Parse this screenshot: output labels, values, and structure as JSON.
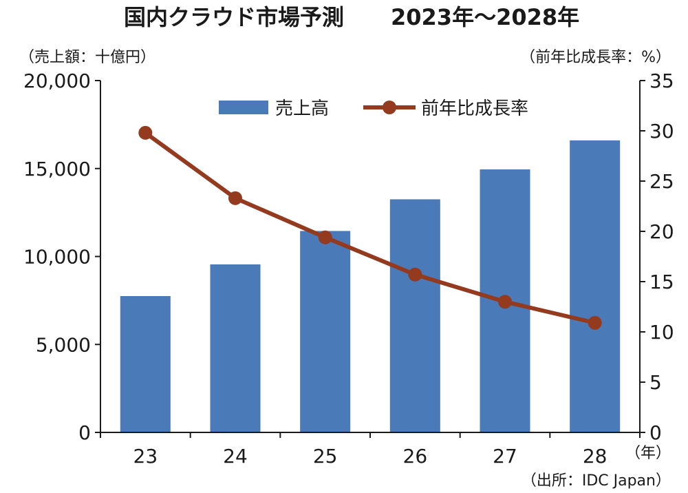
{
  "chart_data": {
    "type": "bar",
    "title": "国内クラウド市場予測",
    "subtitle": "2023年～2028年",
    "left_unit": "（売上額：十億円）",
    "right_unit": "（前年比成長率：%）",
    "x_unit": "（年）",
    "source": "（出所：IDC Japan）",
    "categories": [
      "23",
      "24",
      "25",
      "26",
      "27",
      "28"
    ],
    "series": [
      {
        "name": "売上高",
        "type": "bar",
        "axis": "left",
        "color": "#4a7ab8",
        "values": [
          7750,
          9550,
          11450,
          13250,
          14950,
          16600
        ]
      },
      {
        "name": "前年比成長率",
        "type": "line",
        "axis": "right",
        "color": "#943a1e",
        "values": [
          29.8,
          23.3,
          19.4,
          15.7,
          13.0,
          10.9
        ]
      }
    ],
    "left_axis": {
      "min": 0,
      "max": 20000,
      "ticks": [
        0,
        5000,
        10000,
        15000,
        20000
      ],
      "tick_labels": [
        "0",
        "5,000",
        "10,000",
        "15,000",
        "20,000"
      ]
    },
    "right_axis": {
      "min": 0,
      "max": 35,
      "ticks": [
        0,
        5,
        10,
        15,
        20,
        25,
        30,
        35
      ],
      "tick_labels": [
        "0",
        "5",
        "10",
        "15",
        "20",
        "25",
        "30",
        "35"
      ]
    },
    "grid": false,
    "legend": "top-center"
  }
}
